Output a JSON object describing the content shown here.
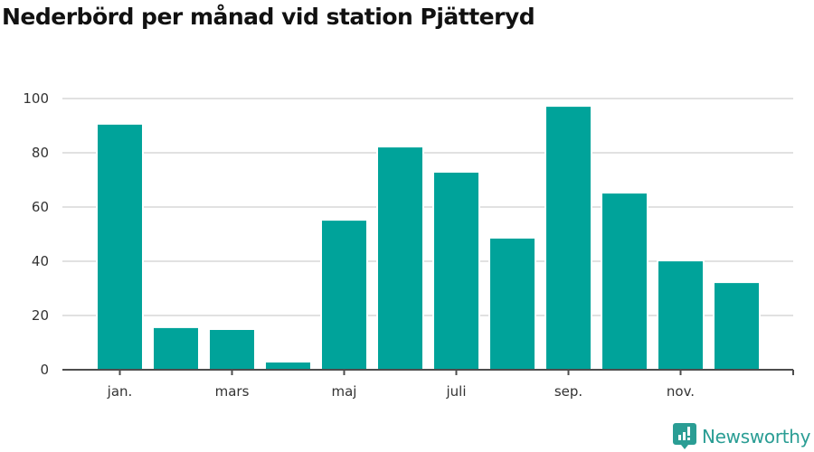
{
  "title": "Nederbörd per månad vid station Pjätteryd",
  "brand": {
    "name": "Newsworthy",
    "icon": "newsworthy-logo-icon",
    "color": "#2a9d94"
  },
  "colors": {
    "bar": "#00a39a",
    "grid": "#e1e1e1",
    "axis": "#4d4d4d",
    "text": "#333333"
  },
  "chart_data": {
    "type": "bar",
    "title": "Nederbörd per månad vid station Pjätteryd",
    "xlabel": "",
    "ylabel": "",
    "categories": [
      "jan.",
      "feb.",
      "mars",
      "apr.",
      "maj",
      "juni",
      "juli",
      "aug.",
      "sep.",
      "okt.",
      "nov.",
      "dec."
    ],
    "values": [
      90.7,
      15.7,
      15.0,
      3.0,
      55.3,
      82.3,
      73.0,
      48.7,
      97.3,
      65.3,
      40.3,
      32.3
    ],
    "visible_x_tick_labels": [
      "jan.",
      "mars",
      "maj",
      "juli",
      "sep.",
      "nov."
    ],
    "y_ticks": [
      0,
      20,
      40,
      60,
      80,
      100
    ],
    "ylim": [
      0,
      100
    ],
    "grid": true,
    "legend": null
  }
}
